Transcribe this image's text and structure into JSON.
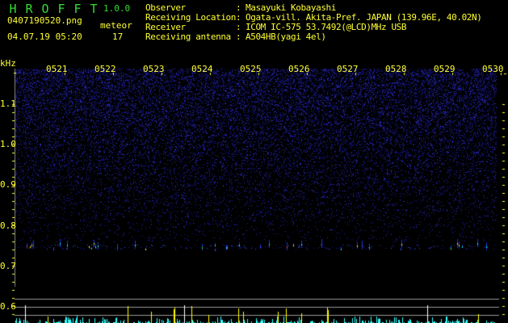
{
  "app": {
    "title_letters": [
      "H",
      "R",
      "O",
      "F",
      "F",
      "T"
    ],
    "version": "1.0.0"
  },
  "file": {
    "name": "0407190520.png",
    "datetime": "04.07.19 05:20"
  },
  "meteor": {
    "label": "meteor",
    "count": "17"
  },
  "info": [
    {
      "label": "Observer",
      "value": "Masayuki Kobayashi"
    },
    {
      "label": "Receiving Location",
      "value": "Ogata-vill. Akita-Pref. JAPAN (139.96E, 40.02N)"
    },
    {
      "label": "Receiver",
      "value": "ICOM IC-575 53.7492(@LCD)MHz USB"
    },
    {
      "label": "Receiving antenna",
      "value": "A504HB(yagi 4el)"
    }
  ],
  "axis": {
    "unit": "kHz",
    "freq_labels": [
      "1.1",
      "1.0",
      "0.9",
      "0.8",
      "0.7",
      "0.6"
    ],
    "time_labels": [
      "0521",
      "0522",
      "0523",
      "0524",
      "0525",
      "0526",
      "0527",
      "0528",
      "0529",
      "0530"
    ]
  },
  "colors": {
    "text": "#ffff33",
    "title": "#33dd33",
    "noise": "#1a1aa0",
    "bars": "#33ffff",
    "bars_strong": "#ffff00",
    "grid": "#999999"
  }
}
